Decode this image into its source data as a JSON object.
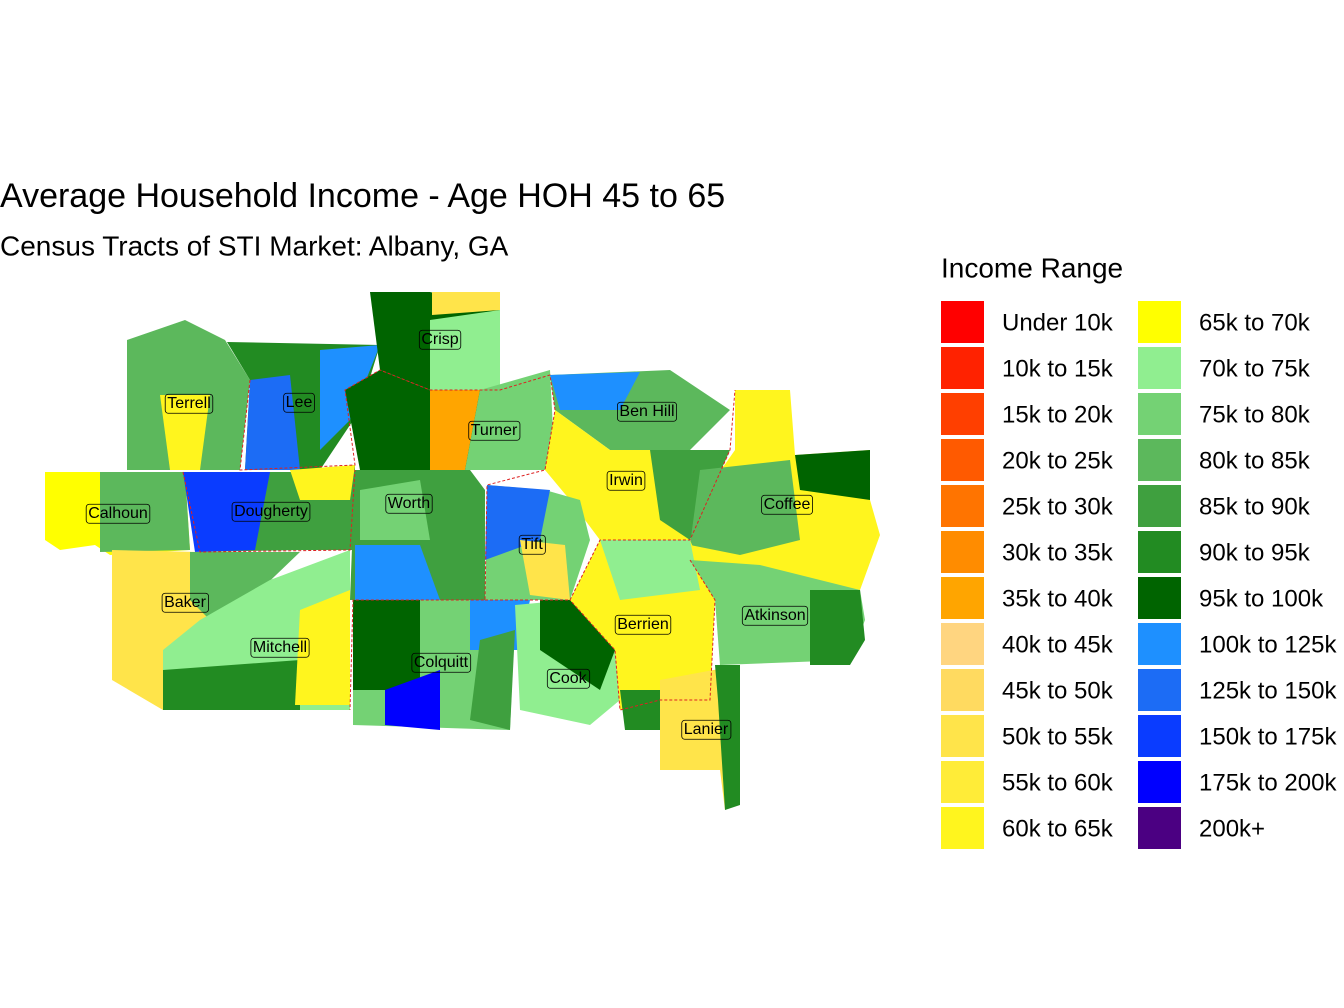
{
  "title": "Average Household Income - Age HOH 45 to 65",
  "subtitle": "Census Tracts of STI Market: Albany, GA",
  "legend": {
    "title": "Income Range",
    "items": [
      {
        "label": "Under 10k",
        "color": "#FF0000"
      },
      {
        "label": "10k to 15k",
        "color": "#FF2200"
      },
      {
        "label": "15k to 20k",
        "color": "#FF3F00"
      },
      {
        "label": "20k to 25k",
        "color": "#FF5A00"
      },
      {
        "label": "25k to 30k",
        "color": "#FF7400"
      },
      {
        "label": "30k to 35k",
        "color": "#FF8C00"
      },
      {
        "label": "35k to 40k",
        "color": "#FFA500"
      },
      {
        "label": "40k to 45k",
        "color": "#FFD580"
      },
      {
        "label": "45k to 50k",
        "color": "#FFDA60"
      },
      {
        "label": "50k to 55k",
        "color": "#FFE44A"
      },
      {
        "label": "55k to 60k",
        "color": "#FFEC38"
      },
      {
        "label": "60k to 65k",
        "color": "#FFF51E"
      },
      {
        "label": "65k to 70k",
        "color": "#FFFF00"
      },
      {
        "label": "70k to 75k",
        "color": "#90EE90"
      },
      {
        "label": "75k to 80k",
        "color": "#74D274"
      },
      {
        "label": "80k to 85k",
        "color": "#5CB85C"
      },
      {
        "label": "85k to 90k",
        "color": "#3FA03F"
      },
      {
        "label": "90k to 95k",
        "color": "#228B22"
      },
      {
        "label": "95k to 100k",
        "color": "#006400"
      },
      {
        "label": "100k to 125k",
        "color": "#1E90FF"
      },
      {
        "label": "125k to 150k",
        "color": "#1C6CF5"
      },
      {
        "label": "150k to 175k",
        "color": "#0A3CFF"
      },
      {
        "label": "175k to 200k",
        "color": "#0000FF"
      },
      {
        "label": "200k+",
        "color": "#4B0082"
      }
    ]
  },
  "counties": [
    "Crisp",
    "Terrell",
    "Lee",
    "Ben Hill",
    "Turner",
    "Irwin",
    "Calhoun",
    "Dougherty",
    "Worth",
    "Coffee",
    "Tift",
    "Baker",
    "Berrien",
    "Atkinson",
    "Mitchell",
    "Colquitt",
    "Cook",
    "Lanier"
  ]
}
